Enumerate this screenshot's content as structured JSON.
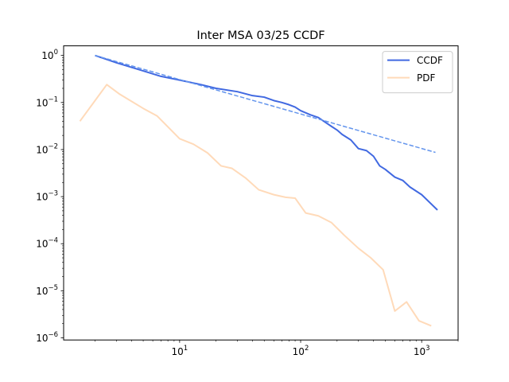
{
  "chart_data": {
    "type": "line",
    "title": "Inter MSA 03/25 CCDF",
    "xlabel": "",
    "ylabel": "",
    "xscale": "log",
    "yscale": "log",
    "xlim": [
      1.1,
      2000
    ],
    "ylim": [
      9e-07,
      1.6
    ],
    "x_ticks": [
      {
        "value": 10,
        "base": "10",
        "exp": "1"
      },
      {
        "value": 100,
        "base": "10",
        "exp": "2"
      },
      {
        "value": 1000,
        "base": "10",
        "exp": "3"
      }
    ],
    "y_ticks": [
      {
        "value": 1,
        "base": "10",
        "exp": "0"
      },
      {
        "value": 0.1,
        "base": "10",
        "exp": "−1"
      },
      {
        "value": 0.01,
        "base": "10",
        "exp": "−2"
      },
      {
        "value": 0.001,
        "base": "10",
        "exp": "−3"
      },
      {
        "value": 0.0001,
        "base": "10",
        "exp": "−4"
      },
      {
        "value": 1e-05,
        "base": "10",
        "exp": "−5"
      },
      {
        "value": 1e-06,
        "base": "10",
        "exp": "−6"
      }
    ],
    "legend_position": "top-right",
    "grid": false,
    "series": [
      {
        "name": "CCDF",
        "color": "#4169e1",
        "style": "solid",
        "x": [
          2,
          3,
          5,
          7,
          10,
          15,
          20,
          30,
          40,
          50,
          60,
          70,
          80,
          90,
          100,
          120,
          140,
          160,
          180,
          200,
          220,
          260,
          300,
          350,
          400,
          450,
          500,
          600,
          700,
          800,
          1000,
          1350
        ],
        "y": [
          1.0,
          0.7,
          0.47,
          0.36,
          0.3,
          0.24,
          0.2,
          0.17,
          0.14,
          0.13,
          0.11,
          0.1,
          0.09,
          0.08,
          0.067,
          0.055,
          0.048,
          0.038,
          0.031,
          0.026,
          0.021,
          0.016,
          0.0105,
          0.0095,
          0.0072,
          0.0045,
          0.0038,
          0.0026,
          0.0022,
          0.0016,
          0.0011,
          0.00052
        ]
      },
      {
        "name": "",
        "color": "#6495ed",
        "style": "dashed",
        "x": [
          2,
          1300
        ],
        "y": [
          1.0,
          0.0087
        ]
      },
      {
        "name": "PDF",
        "color": "#ffdab9",
        "style": "solid",
        "x": [
          1.5,
          2.5,
          3.2,
          5,
          6.5,
          10,
          13,
          17,
          22,
          27,
          35,
          45,
          60,
          75,
          90,
          110,
          140,
          180,
          230,
          300,
          380,
          480,
          600,
          750,
          950,
          1200
        ],
        "y": [
          0.04,
          0.24,
          0.15,
          0.075,
          0.052,
          0.017,
          0.013,
          0.0085,
          0.0045,
          0.004,
          0.0025,
          0.0014,
          0.0011,
          0.00097,
          0.00093,
          0.00045,
          0.00039,
          0.00028,
          0.00015,
          8e-05,
          5e-05,
          2.8e-05,
          3.7e-06,
          5.8e-06,
          2.3e-06,
          1.8e-06
        ]
      }
    ]
  }
}
